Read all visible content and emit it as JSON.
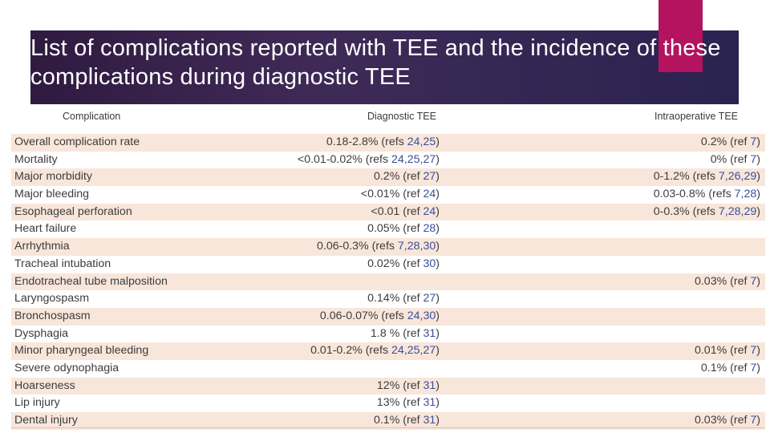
{
  "title": "List of complications reported with TEE and the incidence of these complications during diagnostic TEE",
  "colors": {
    "title_band": "#3f2a57",
    "accent": "#b3135f",
    "row_shade": "#f8e6da",
    "ref_link": "#3a4f9a"
  },
  "table": {
    "headers": {
      "complication": "Complication",
      "diagnostic": "Diagnostic TEE",
      "intraoperative": "Intraoperative TEE"
    },
    "rows": [
      {
        "complication": "Overall complication rate",
        "diag_val": "0.18-2.8% (refs ",
        "diag_refs": "24,25",
        "intra_val": "0.2% (ref ",
        "intra_refs": "7"
      },
      {
        "complication": "Mortality",
        "diag_val": "<0.01-0.02% (refs ",
        "diag_refs": "24,25,27",
        "intra_val": "0% (ref ",
        "intra_refs": "7"
      },
      {
        "complication": "Major morbidity",
        "diag_val": "0.2% (ref ",
        "diag_refs": "27",
        "intra_val": "0-1.2% (refs ",
        "intra_refs": "7,26,29"
      },
      {
        "complication": "Major bleeding",
        "diag_val": "<0.01% (ref ",
        "diag_refs": "24",
        "intra_val": "0.03-0.8% (refs ",
        "intra_refs": "7,28"
      },
      {
        "complication": "Esophageal perforation",
        "diag_val": "<0.01 (ref ",
        "diag_refs": "24",
        "intra_val": "0-0.3% (refs ",
        "intra_refs": "7,28,29"
      },
      {
        "complication": "Heart failure",
        "diag_val": "0.05% (ref ",
        "diag_refs": "28",
        "intra_val": "",
        "intra_refs": ""
      },
      {
        "complication": "Arrhythmia",
        "diag_val": "0.06-0.3% (refs ",
        "diag_refs": "7,28,30",
        "intra_val": "",
        "intra_refs": ""
      },
      {
        "complication": "Tracheal intubation",
        "diag_val": "0.02% (ref ",
        "diag_refs": "30",
        "intra_val": "",
        "intra_refs": ""
      },
      {
        "complication": "Endotracheal tube malposition",
        "diag_val": "",
        "diag_refs": "",
        "intra_val": "0.03% (ref ",
        "intra_refs": "7"
      },
      {
        "complication": "Laryngospasm",
        "diag_val": "0.14% (ref ",
        "diag_refs": "27",
        "intra_val": "",
        "intra_refs": ""
      },
      {
        "complication": "Bronchospasm",
        "diag_val": "0.06-0.07% (refs ",
        "diag_refs": "24,30",
        "intra_val": "",
        "intra_refs": ""
      },
      {
        "complication": "Dysphagia",
        "diag_val": "1.8 % (ref ",
        "diag_refs": "31",
        "intra_val": "",
        "intra_refs": ""
      },
      {
        "complication": "Minor pharyngeal bleeding",
        "diag_val": "0.01-0.2% (refs ",
        "diag_refs": "24,25,27",
        "intra_val": "0.01% (ref ",
        "intra_refs": "7"
      },
      {
        "complication": "Severe odynophagia",
        "diag_val": "",
        "diag_refs": "",
        "intra_val": "0.1% (ref ",
        "intra_refs": "7"
      },
      {
        "complication": "Hoarseness",
        "diag_val": "12% (ref ",
        "diag_refs": "31",
        "intra_val": "",
        "intra_refs": ""
      },
      {
        "complication": "Lip injury",
        "diag_val": "13% (ref ",
        "diag_refs": "31",
        "intra_val": "",
        "intra_refs": ""
      },
      {
        "complication": "Dental injury",
        "diag_val": "0.1% (ref ",
        "diag_refs": "31",
        "intra_val": "0.03% (ref ",
        "intra_refs": "7"
      }
    ]
  }
}
